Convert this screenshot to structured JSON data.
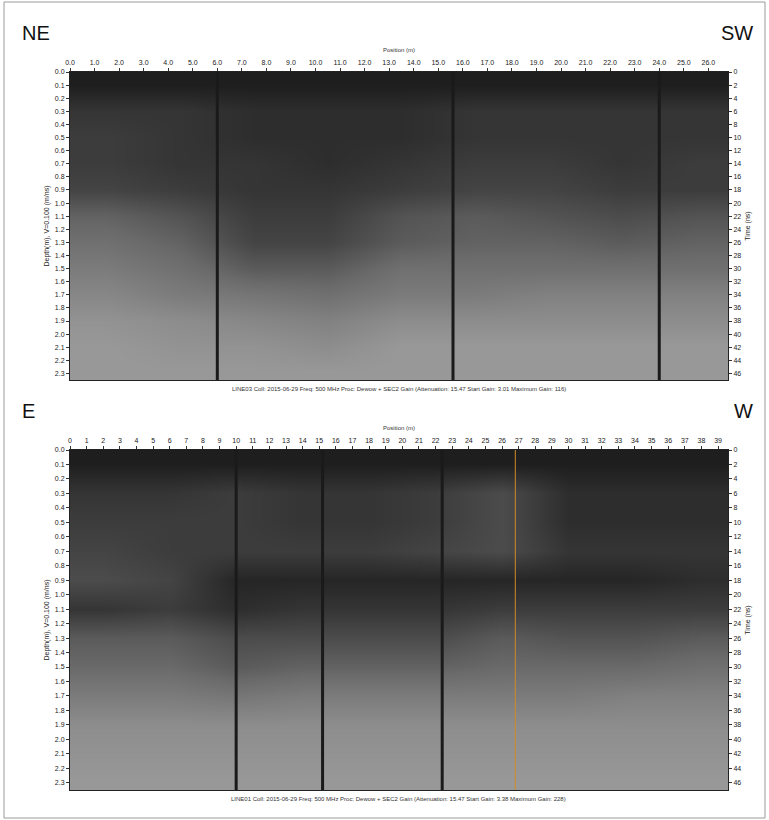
{
  "chart_data": [
    {
      "type": "heatmap",
      "direction_labels": [
        "NE",
        "SW"
      ],
      "x_label": "Position (m)",
      "y_label": "Depth(m), V=0.100 (m/ns)",
      "y2_label": "Time (ns)",
      "caption": "LINE03 Coll: 2015-06-29 Freq: 500 MHz Proc: Dewow + SEC2 Gain (Attenuation: 15.47 Start Gain: 3.01 Maximum Gain: 116)",
      "grid": true,
      "xlim": [
        0,
        26.8
      ],
      "xticks": [
        {
          "value": 0,
          "label": "0.0"
        },
        {
          "value": 1,
          "label": "1.0"
        },
        {
          "value": 2,
          "label": "2.0"
        },
        {
          "value": 3,
          "label": "3.0"
        },
        {
          "value": 4,
          "label": "4.0"
        },
        {
          "value": 5,
          "label": "5.0"
        },
        {
          "value": 6,
          "label": "6.0"
        },
        {
          "value": 7,
          "label": "7.0"
        },
        {
          "value": 8,
          "label": "8.0"
        },
        {
          "value": 9,
          "label": "9.0"
        },
        {
          "value": 10,
          "label": "10.0"
        },
        {
          "value": 11,
          "label": "11.0"
        },
        {
          "value": 12,
          "label": "12.0"
        },
        {
          "value": 13,
          "label": "13.0"
        },
        {
          "value": 14,
          "label": "14.0"
        },
        {
          "value": 15,
          "label": "15.0"
        },
        {
          "value": 16,
          "label": "16.0"
        },
        {
          "value": 17,
          "label": "17.0"
        },
        {
          "value": 18,
          "label": "18.0"
        },
        {
          "value": 19,
          "label": "19.0"
        },
        {
          "value": 20,
          "label": "20.0"
        },
        {
          "value": 21,
          "label": "21.0"
        },
        {
          "value": 22,
          "label": "22.0"
        },
        {
          "value": 23,
          "label": "23.0"
        },
        {
          "value": 24,
          "label": "24.0"
        },
        {
          "value": 25,
          "label": "25.0"
        },
        {
          "value": 26,
          "label": "26.0"
        }
      ],
      "ylim": [
        0,
        2.35
      ],
      "yticks": [
        {
          "value": 0,
          "label": "0.0"
        },
        0.1,
        0.2,
        0.3,
        0.4,
        0.5,
        0.6,
        0.7,
        0.8,
        0.9,
        {
          "value": 1,
          "label": "1.0"
        },
        1.1,
        1.2,
        1.3,
        1.4,
        1.5,
        1.6,
        1.7,
        1.8,
        1.9,
        {
          "value": 2,
          "label": "2.0"
        },
        2.1,
        2.2,
        2.3
      ],
      "y2lim": [
        0,
        47
      ],
      "y2ticks": [
        0,
        2,
        4,
        6,
        8,
        10,
        12,
        14,
        16,
        18,
        20,
        22,
        24,
        26,
        28,
        30,
        32,
        34,
        36,
        38,
        40,
        42,
        44,
        46
      ],
      "marker_lines": [
        {
          "x": 6.0,
          "color": "#1a1a1a"
        },
        {
          "x": 15.6,
          "color": "#1a1a1a"
        },
        {
          "x": 24.0,
          "color": "#1a1a1a"
        }
      ],
      "zlim": [
        0,
        1
      ],
      "x": [
        1.5,
        4.5,
        7.5,
        10.5,
        13.5,
        16.5,
        19.5,
        22.5,
        25.5
      ],
      "y": [
        0.1,
        0.3,
        0.5,
        0.7,
        0.9,
        1.1,
        1.3,
        1.5,
        1.7,
        1.9,
        2.1,
        2.3
      ],
      "z": [
        [
          1,
          1,
          1,
          1,
          1,
          1,
          1,
          1,
          1
        ],
        [
          0.85,
          0.85,
          0.9,
          0.9,
          0.9,
          0.85,
          0.85,
          0.85,
          0.85
        ],
        [
          0.8,
          0.85,
          0.9,
          0.9,
          0.9,
          0.85,
          0.85,
          0.85,
          0.85
        ],
        [
          0.8,
          0.85,
          0.85,
          0.9,
          0.85,
          0.8,
          0.8,
          0.85,
          0.8
        ],
        [
          0.75,
          0.8,
          0.85,
          0.85,
          0.8,
          0.75,
          0.75,
          0.8,
          0.8
        ],
        [
          0.55,
          0.65,
          0.8,
          0.8,
          0.65,
          0.6,
          0.65,
          0.7,
          0.65
        ],
        [
          0.45,
          0.55,
          0.75,
          0.75,
          0.6,
          0.55,
          0.55,
          0.6,
          0.55
        ],
        [
          0.35,
          0.45,
          0.6,
          0.6,
          0.45,
          0.45,
          0.45,
          0.45,
          0.45
        ],
        [
          0.25,
          0.35,
          0.4,
          0.45,
          0.35,
          0.35,
          0.3,
          0.3,
          0.3
        ],
        [
          0.15,
          0.2,
          0.25,
          0.3,
          0.2,
          0.2,
          0.2,
          0.2,
          0.2
        ],
        [
          0.1,
          0.15,
          0.15,
          0.2,
          0.1,
          0.1,
          0.1,
          0.1,
          0.1
        ],
        [
          0.1,
          0.1,
          0.1,
          0.1,
          0.1,
          0.1,
          0.1,
          0.1,
          0.1
        ]
      ]
    },
    {
      "type": "heatmap",
      "direction_labels": [
        "E",
        "W"
      ],
      "x_label": "Position (m)",
      "y_label": "Depth(m), V=0.100 (m/ns)",
      "y2_label": "Time (ns)",
      "caption": "LINE01 Coll: 2015-06-29 Freq: 500 MHz Proc: Dewow + SEC2 Gain (Attenuation: 15.47 Start Gain: 3.38 Maximum Gain: 228)",
      "grid": true,
      "xlim": [
        0,
        39.6
      ],
      "xticks": [
        0,
        1,
        2,
        3,
        4,
        5,
        6,
        7,
        8,
        9,
        10,
        11,
        12,
        13,
        14,
        15,
        16,
        17,
        18,
        19,
        20,
        21,
        22,
        23,
        24,
        25,
        26,
        27,
        28,
        29,
        30,
        31,
        32,
        33,
        34,
        35,
        36,
        37,
        38,
        39
      ],
      "ylim": [
        0,
        2.35
      ],
      "yticks": [
        {
          "value": 0,
          "label": "0.0"
        },
        0.1,
        0.2,
        0.3,
        0.4,
        0.5,
        0.6,
        0.7,
        0.8,
        0.9,
        {
          "value": 1,
          "label": "1.0"
        },
        1.1,
        1.2,
        1.3,
        1.4,
        1.5,
        1.6,
        1.7,
        1.8,
        1.9,
        {
          "value": 2,
          "label": "2.0"
        },
        2.1,
        2.2,
        2.3
      ],
      "y2lim": [
        0,
        47
      ],
      "y2ticks": [
        0,
        2,
        4,
        6,
        8,
        10,
        12,
        14,
        16,
        18,
        20,
        22,
        24,
        26,
        28,
        30,
        32,
        34,
        36,
        38,
        40,
        42,
        44,
        46
      ],
      "marker_lines": [
        {
          "x": 10.0,
          "color": "#1a1a1a"
        },
        {
          "x": 15.2,
          "color": "#1a1a1a"
        },
        {
          "x": 22.4,
          "color": "#1a1a1a"
        },
        {
          "x": 26.8,
          "color": "#d08a2a"
        }
      ],
      "zlim": [
        0,
        1
      ],
      "x": [
        2,
        6,
        10,
        14,
        18,
        22,
        26,
        30,
        34,
        38
      ],
      "y": [
        0.1,
        0.3,
        0.5,
        0.7,
        0.9,
        1.1,
        1.3,
        1.5,
        1.7,
        1.9,
        2.1,
        2.3
      ],
      "z": [
        [
          1,
          1,
          1,
          1,
          1,
          1,
          1,
          1,
          1,
          1
        ],
        [
          0.85,
          0.85,
          0.8,
          0.85,
          0.85,
          0.8,
          0.7,
          0.9,
          0.9,
          0.9
        ],
        [
          0.8,
          0.8,
          0.8,
          0.85,
          0.85,
          0.8,
          0.7,
          0.9,
          0.9,
          0.9
        ],
        [
          0.75,
          0.8,
          0.8,
          0.8,
          0.8,
          0.75,
          0.7,
          0.85,
          0.85,
          0.85
        ],
        [
          0.7,
          0.75,
          0.95,
          0.95,
          0.95,
          0.95,
          0.95,
          0.95,
          0.95,
          0.9
        ],
        [
          0.85,
          0.8,
          0.9,
          0.85,
          0.85,
          0.85,
          0.8,
          0.8,
          0.8,
          0.8
        ],
        [
          0.6,
          0.6,
          0.7,
          0.7,
          0.7,
          0.7,
          0.6,
          0.65,
          0.65,
          0.6
        ],
        [
          0.5,
          0.5,
          0.6,
          0.55,
          0.55,
          0.55,
          0.5,
          0.5,
          0.5,
          0.45
        ],
        [
          0.35,
          0.35,
          0.4,
          0.35,
          0.35,
          0.35,
          0.35,
          0.35,
          0.3,
          0.3
        ],
        [
          0.2,
          0.2,
          0.2,
          0.2,
          0.2,
          0.2,
          0.2,
          0.2,
          0.2,
          0.2
        ],
        [
          0.15,
          0.15,
          0.15,
          0.15,
          0.15,
          0.15,
          0.15,
          0.15,
          0.15,
          0.15
        ],
        [
          0.1,
          0.1,
          0.1,
          0.1,
          0.1,
          0.1,
          0.1,
          0.1,
          0.1,
          0.1
        ]
      ]
    }
  ]
}
